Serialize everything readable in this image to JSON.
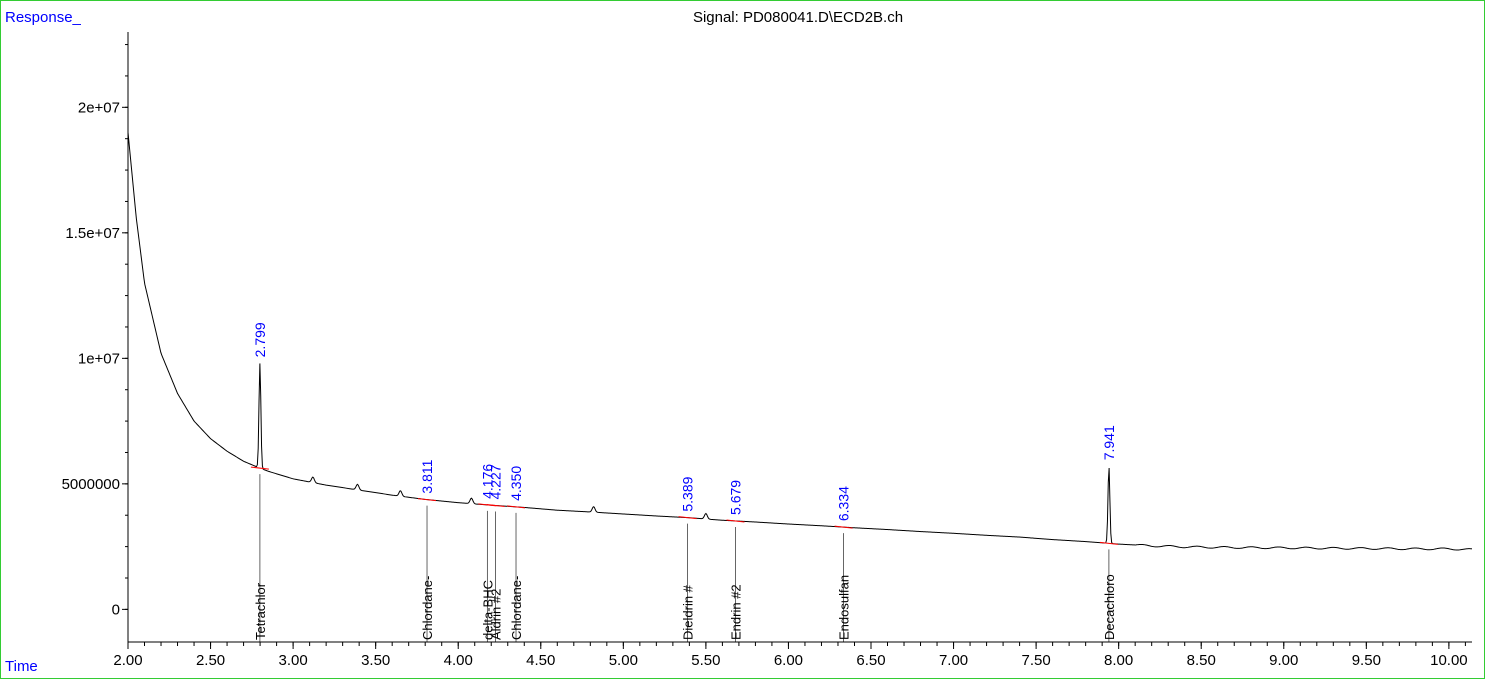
{
  "chart_data": {
    "type": "line",
    "title": "Signal: PD080041.D\\ECD2B.ch",
    "ylabel": "Response_",
    "xlabel": "Time",
    "xlim": [
      2.0,
      10.14
    ],
    "ylim": [
      -1300000,
      23000000
    ],
    "x_ticks": [
      "2.00",
      "2.50",
      "3.00",
      "3.50",
      "4.00",
      "4.50",
      "5.00",
      "5.50",
      "6.00",
      "6.50",
      "7.00",
      "7.50",
      "8.00",
      "8.50",
      "9.00",
      "9.50",
      "10.00"
    ],
    "y_ticks": [
      {
        "value": 20000000,
        "label": "2e+07"
      },
      {
        "value": 15000000,
        "label": "1.5e+07"
      },
      {
        "value": 10000000,
        "label": "1e+07"
      },
      {
        "value": 5000000,
        "label": "5000000"
      },
      {
        "value": 0,
        "label": "0"
      }
    ],
    "baseline": [
      [
        2.0,
        19000000
      ],
      [
        2.05,
        15600000
      ],
      [
        2.1,
        13000000
      ],
      [
        2.2,
        10200000
      ],
      [
        2.3,
        8600000
      ],
      [
        2.4,
        7500000
      ],
      [
        2.5,
        6800000
      ],
      [
        2.6,
        6300000
      ],
      [
        2.7,
        5900000
      ],
      [
        2.79,
        5650000
      ],
      [
        2.85,
        5500000
      ],
      [
        3.0,
        5200000
      ],
      [
        3.2,
        4950000
      ],
      [
        3.4,
        4750000
      ],
      [
        3.6,
        4550000
      ],
      [
        3.8,
        4380000
      ],
      [
        4.0,
        4250000
      ],
      [
        4.2,
        4150000
      ],
      [
        4.4,
        4060000
      ],
      [
        4.6,
        3950000
      ],
      [
        4.8,
        3880000
      ],
      [
        5.0,
        3800000
      ],
      [
        5.2,
        3720000
      ],
      [
        5.4,
        3650000
      ],
      [
        5.6,
        3550000
      ],
      [
        5.8,
        3480000
      ],
      [
        6.0,
        3400000
      ],
      [
        6.2,
        3330000
      ],
      [
        6.4,
        3250000
      ],
      [
        6.6,
        3180000
      ],
      [
        6.8,
        3100000
      ],
      [
        7.0,
        3030000
      ],
      [
        7.2,
        2950000
      ],
      [
        7.4,
        2880000
      ],
      [
        7.6,
        2780000
      ],
      [
        7.8,
        2700000
      ],
      [
        8.0,
        2600000
      ],
      [
        8.2,
        2530000
      ],
      [
        8.4,
        2490000
      ],
      [
        8.6,
        2470000
      ],
      [
        8.8,
        2460000
      ],
      [
        9.0,
        2450000
      ],
      [
        9.2,
        2440000
      ],
      [
        9.4,
        2430000
      ],
      [
        9.6,
        2420000
      ],
      [
        9.8,
        2410000
      ],
      [
        10.0,
        2410000
      ],
      [
        10.14,
        2380000
      ]
    ],
    "peaks": [
      {
        "rt": 2.799,
        "label": "2.799",
        "height": 9800000
      },
      {
        "rt": 7.941,
        "label": "7.941",
        "height": 5700000
      }
    ],
    "minor_peaks": [
      3.12,
      3.39,
      3.65,
      4.08,
      4.82,
      5.5
    ],
    "rt_labels": [
      {
        "rt": 2.799,
        "label": "2.799"
      },
      {
        "rt": 3.811,
        "label": "3.811"
      },
      {
        "rt": 4.176,
        "label": "4.176"
      },
      {
        "rt": 4.227,
        "label": "4.227"
      },
      {
        "rt": 4.35,
        "label": "4.350"
      },
      {
        "rt": 5.389,
        "label": "5.389"
      },
      {
        "rt": 5.679,
        "label": "5.679"
      },
      {
        "rt": 6.334,
        "label": "6.334"
      },
      {
        "rt": 7.941,
        "label": "7.941"
      }
    ],
    "compounds": [
      {
        "rt": 2.799,
        "label": "Tetrachlor"
      },
      {
        "rt": 3.811,
        "label": "Chlordane-"
      },
      {
        "rt": 4.176,
        "label": "delta-BHC"
      },
      {
        "rt": 4.227,
        "label": "Aldrin #2"
      },
      {
        "rt": 4.35,
        "label": "Chlordane-"
      },
      {
        "rt": 5.389,
        "label": "Dieldrin #"
      },
      {
        "rt": 5.679,
        "label": "Endrin #2"
      },
      {
        "rt": 6.334,
        "label": "Endosulfan"
      },
      {
        "rt": 7.941,
        "label": "Decachloro"
      }
    ],
    "colors": {
      "trace": "#000000",
      "rt_label": "#0000ff",
      "axis_title": "#0000ff",
      "integration": "#ff0000",
      "frame": "#33cc33"
    }
  }
}
